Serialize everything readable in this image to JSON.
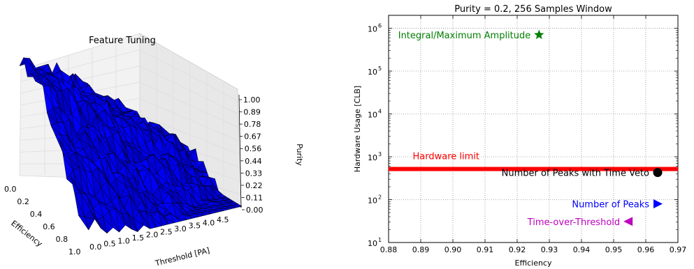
{
  "chart_data": [
    {
      "type": "surface",
      "title": "Feature Tuning",
      "xlabel": "Efficiency",
      "ylabel": "Threshold [PA]",
      "zlabel": "Purity",
      "x_ticks": [
        "0.0",
        "0.2",
        "0.4",
        "0.6",
        "0.8",
        "1.0"
      ],
      "y_ticks": [
        "0.0",
        "0.5",
        "1.0",
        "1.5",
        "2.0",
        "2.5",
        "3.0",
        "3.5",
        "4.0",
        "4.5"
      ],
      "z_ticks": [
        "0.00",
        "0.11",
        "0.22",
        "0.33",
        "0.44",
        "0.56",
        "0.67",
        "0.78",
        "0.89",
        "1.00"
      ],
      "xlim": [
        0,
        1
      ],
      "ylim": [
        0,
        4.5
      ],
      "zlim": [
        0,
        1
      ],
      "surface_color": "#0000ff",
      "edge_color": "#000000"
    },
    {
      "type": "scatter",
      "title": "Purity = 0.2, 256 Samples Window",
      "xlabel": "Efficiency",
      "ylabel": "Hardware Usage [CLB]",
      "xlim": [
        0.88,
        0.97
      ],
      "ylim": [
        10,
        2000000
      ],
      "yscale": "log",
      "grid": true,
      "x_ticks": [
        "0.88",
        "0.89",
        "0.90",
        "0.91",
        "0.92",
        "0.93",
        "0.94",
        "0.95",
        "0.96",
        "0.97"
      ],
      "y_ticks": [
        {
          "value": 10,
          "exp": "1"
        },
        {
          "value": 100,
          "exp": "2"
        },
        {
          "value": 1000,
          "exp": "3"
        },
        {
          "value": 10000,
          "exp": "4"
        },
        {
          "value": 100000,
          "exp": "5"
        },
        {
          "value": 1000000,
          "exp": "6"
        }
      ],
      "y_tick_base": "10",
      "hline": {
        "value": 520,
        "label": "Hardware limit",
        "color": "#ff0000"
      },
      "points": [
        {
          "x": 0.9268,
          "y": 700000,
          "label": "Integral/Maximum Amplitude",
          "marker": "star",
          "color": "#007f00"
        },
        {
          "x": 0.9637,
          "y": 430,
          "label": "Number of Peaks with Time Veto",
          "marker": "circle",
          "color": "#000000"
        },
        {
          "x": 0.9637,
          "y": 80,
          "label": "Number of Peaks",
          "marker": "triangle-right",
          "color": "#0000ff"
        },
        {
          "x": 0.9546,
          "y": 31,
          "label": "Time-over-Threshold",
          "marker": "triangle-left",
          "color": "#bf00bf"
        }
      ]
    }
  ]
}
